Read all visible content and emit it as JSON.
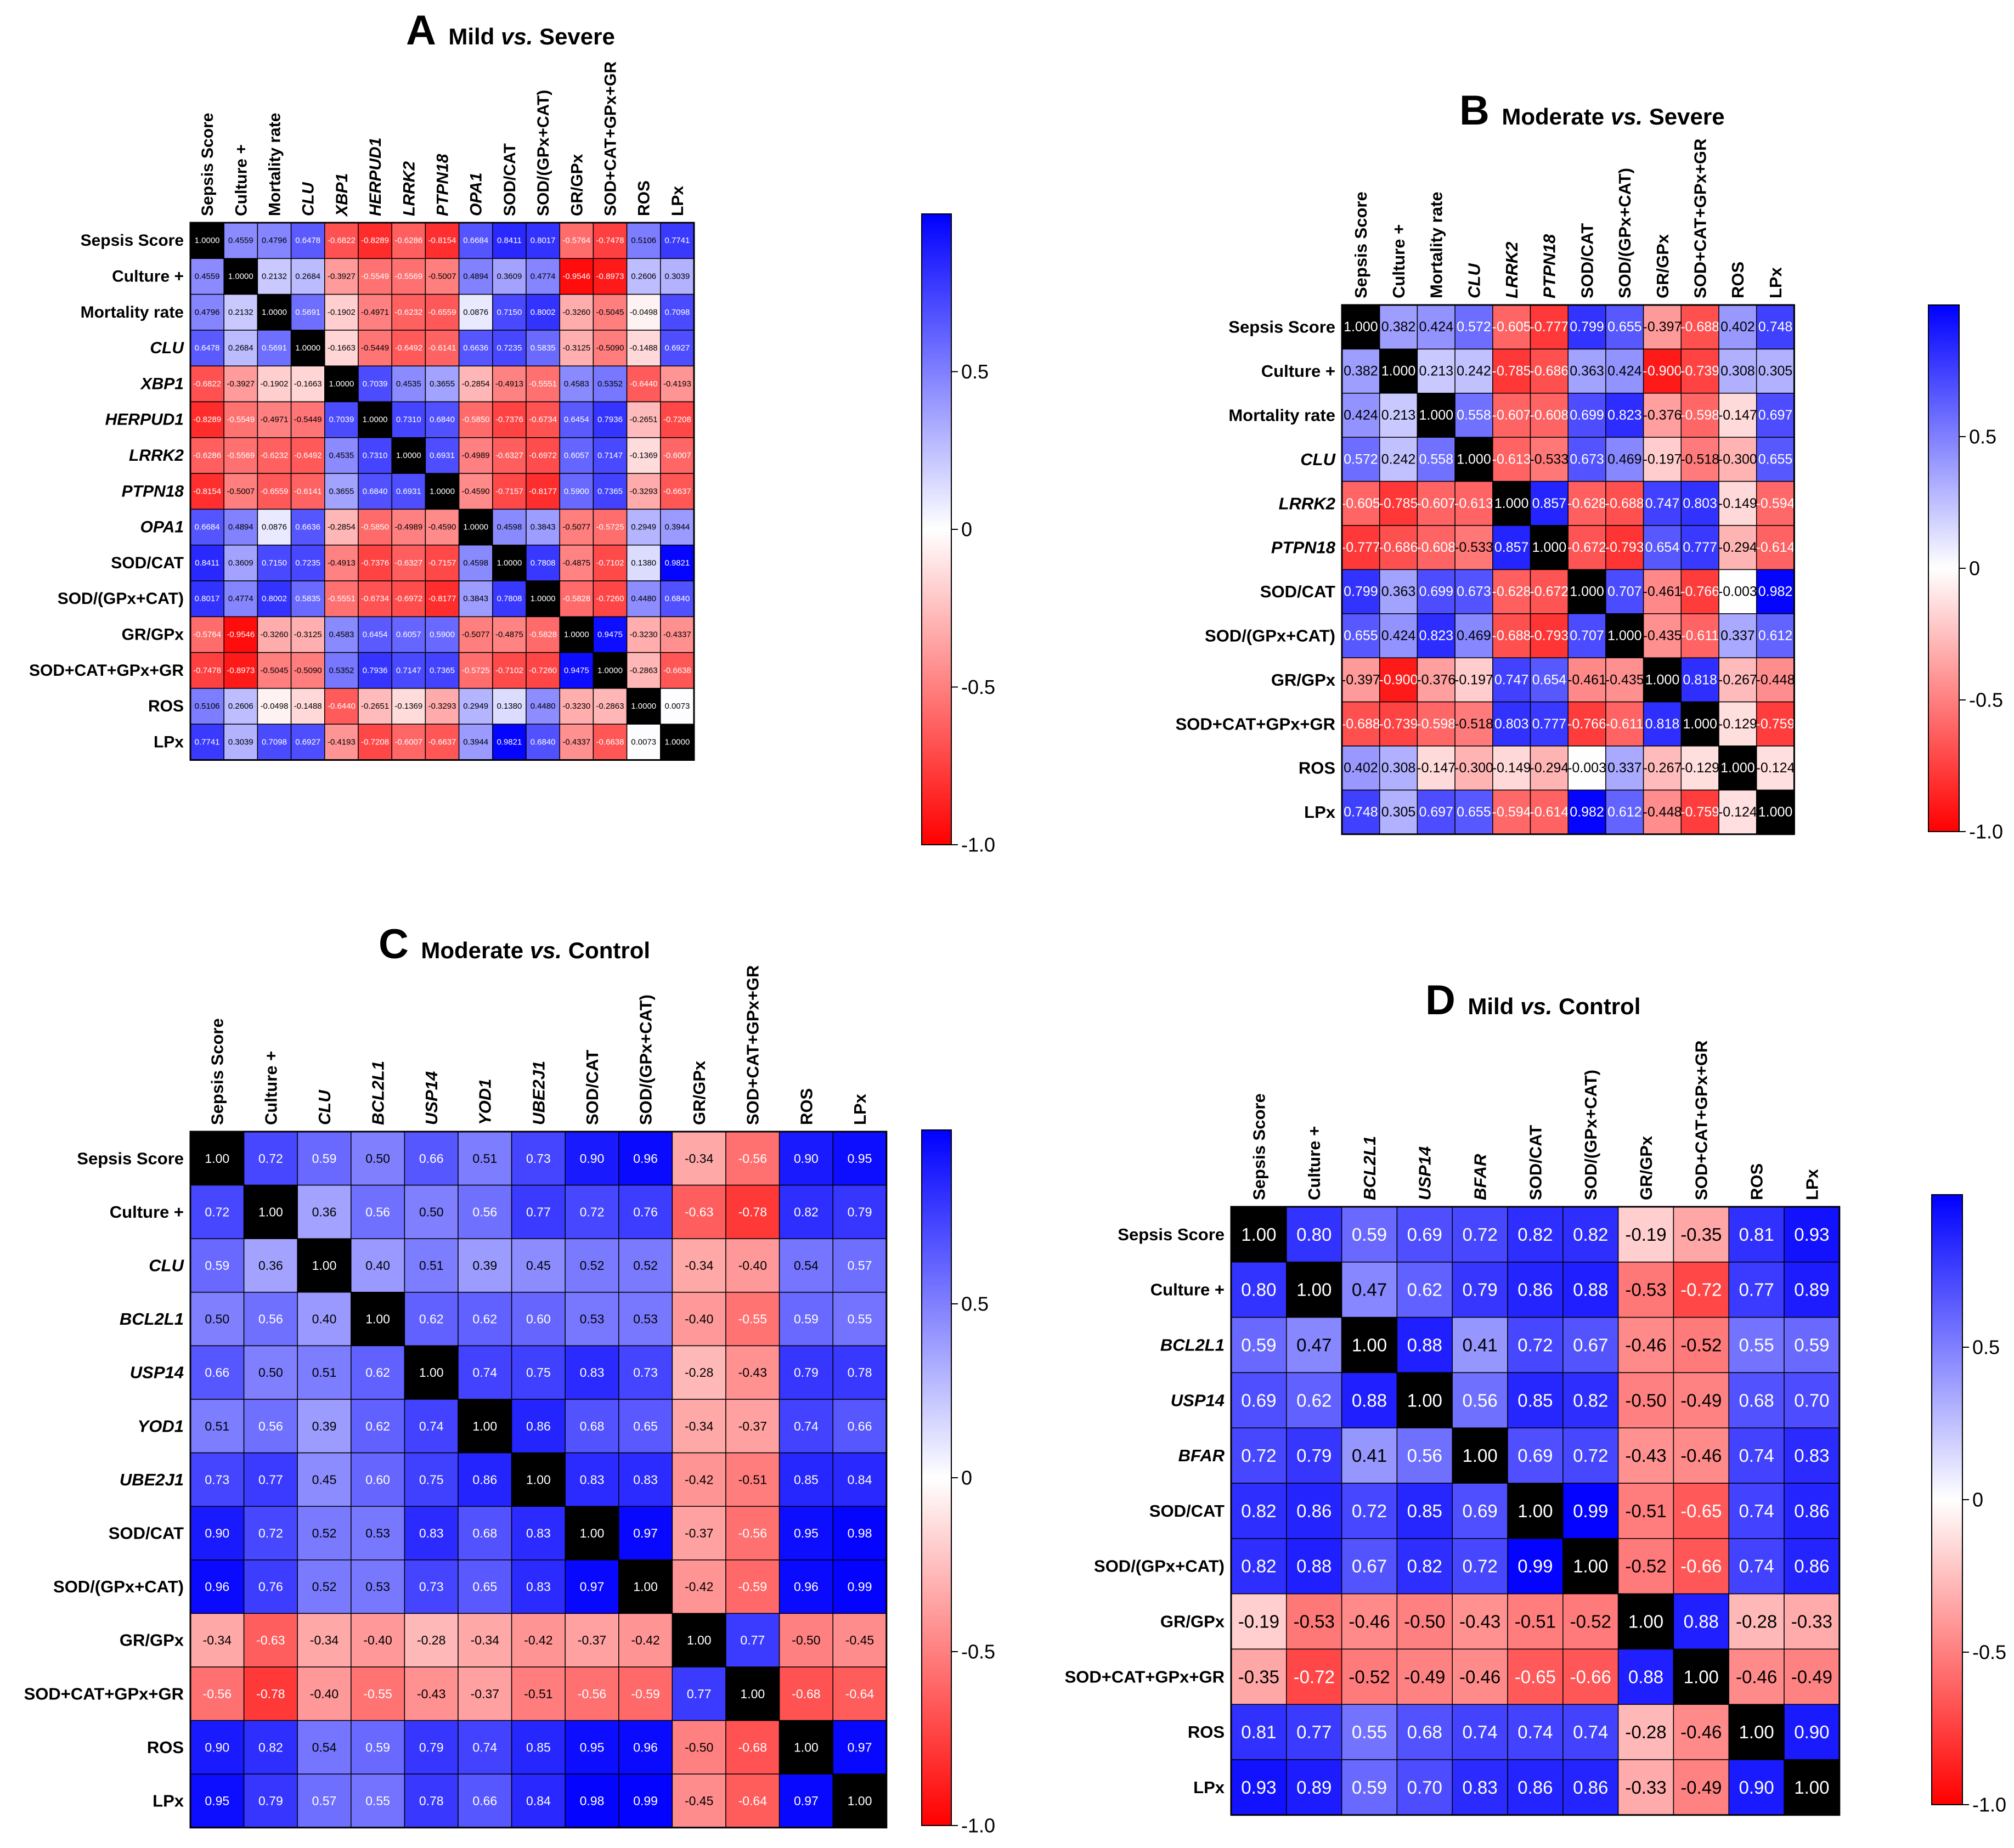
{
  "colors": {
    "negative": "#ff0000",
    "zero": "#ffffff",
    "positive": "#0000ff",
    "diagonal": "#000000",
    "grid": "#000000"
  },
  "chart_data": [
    {
      "type": "heatmap",
      "letter": "A",
      "title_pre": "Mild ",
      "title_vs": "vs.",
      "title_post": " Severe",
      "labels": [
        "Sepsis Score",
        "Culture +",
        "Mortality rate",
        "CLU",
        "XBP1",
        "HERPUD1",
        "LRRK2",
        "PTPN18",
        "OPA1",
        "SOD/CAT",
        "SOD/(GPx+CAT)",
        "GR/GPx",
        "SOD+CAT+GPx+GR",
        "ROS",
        "LPx"
      ],
      "italic": [
        false,
        false,
        false,
        true,
        true,
        true,
        true,
        true,
        true,
        false,
        false,
        false,
        false,
        false,
        false
      ],
      "values": [
        [
          "1.0000",
          "0.4559",
          "0.4796",
          "0.6478",
          "-0.6822",
          "-0.8289",
          "-0.6286",
          "-0.8154",
          "0.6684",
          "0.8411",
          "0.8017",
          "-0.5764",
          "-0.7478",
          "0.5106",
          "0.7741"
        ],
        [
          "0.4559",
          "1.0000",
          "0.2132",
          "0.2684",
          "-0.3927",
          "-0.5549",
          "-0.5569",
          "-0.5007",
          "0.4894",
          "0.3609",
          "0.4774",
          "-0.9546",
          "-0.8973",
          "0.2606",
          "0.3039"
        ],
        [
          "0.4796",
          "0.2132",
          "1.0000",
          "0.5691",
          "-0.1902",
          "-0.4971",
          "-0.6232",
          "-0.6559",
          "0.0876",
          "0.7150",
          "0.8002",
          "-0.3260",
          "-0.5045",
          "-0.0498",
          "0.7098"
        ],
        [
          "0.6478",
          "0.2684",
          "0.5691",
          "1.0000",
          "-0.1663",
          "-0.5449",
          "-0.6492",
          "-0.6141",
          "0.6636",
          "0.7235",
          "0.5835",
          "-0.3125",
          "-0.5090",
          "-0.1488",
          "0.6927"
        ],
        [
          "-0.6822",
          "-0.3927",
          "-0.1902",
          "-0.1663",
          "1.0000",
          "0.7039",
          "0.4535",
          "0.3655",
          "-0.2854",
          "-0.4913",
          "-0.5551",
          "0.4583",
          "0.5352",
          "-0.6440",
          "-0.4193"
        ],
        [
          "-0.8289",
          "-0.5549",
          "-0.4971",
          "-0.5449",
          "0.7039",
          "1.0000",
          "0.7310",
          "0.6840",
          "-0.5850",
          "-0.7376",
          "-0.6734",
          "0.6454",
          "0.7936",
          "-0.2651",
          "-0.7208"
        ],
        [
          "-0.6286",
          "-0.5569",
          "-0.6232",
          "-0.6492",
          "0.4535",
          "0.7310",
          "1.0000",
          "0.6931",
          "-0.4989",
          "-0.6327",
          "-0.6972",
          "0.6057",
          "0.7147",
          "-0.1369",
          "-0.6007"
        ],
        [
          "-0.8154",
          "-0.5007",
          "-0.6559",
          "-0.6141",
          "0.3655",
          "0.6840",
          "0.6931",
          "1.0000",
          "-0.4590",
          "-0.7157",
          "-0.8177",
          "0.5900",
          "0.7365",
          "-0.3293",
          "-0.6637"
        ],
        [
          "0.6684",
          "0.4894",
          "0.0876",
          "0.6636",
          "-0.2854",
          "-0.5850",
          "-0.4989",
          "-0.4590",
          "1.0000",
          "0.4598",
          "0.3843",
          "-0.5077",
          "-0.5725",
          "0.2949",
          "0.3944"
        ],
        [
          "0.8411",
          "0.3609",
          "0.7150",
          "0.7235",
          "-0.4913",
          "-0.7376",
          "-0.6327",
          "-0.7157",
          "0.4598",
          "1.0000",
          "0.7808",
          "-0.4875",
          "-0.7102",
          "0.1380",
          "0.9821"
        ],
        [
          "0.8017",
          "0.4774",
          "0.8002",
          "0.5835",
          "-0.5551",
          "-0.6734",
          "-0.6972",
          "-0.8177",
          "0.3843",
          "0.7808",
          "1.0000",
          "-0.5828",
          "-0.7260",
          "0.4480",
          "0.6840"
        ],
        [
          "-0.5764",
          "-0.9546",
          "-0.3260",
          "-0.3125",
          "0.4583",
          "0.6454",
          "0.6057",
          "0.5900",
          "-0.5077",
          "-0.4875",
          "-0.5828",
          "1.0000",
          "0.9475",
          "-0.3230",
          "-0.4337"
        ],
        [
          "-0.7478",
          "-0.8973",
          "-0.5045",
          "-0.5090",
          "0.5352",
          "0.7936",
          "0.7147",
          "0.7365",
          "-0.5725",
          "-0.7102",
          "-0.7260",
          "0.9475",
          "1.0000",
          "-0.2863",
          "-0.6638"
        ],
        [
          "0.5106",
          "0.2606",
          "-0.0498",
          "-0.1488",
          "-0.6440",
          "-0.2651",
          "-0.1369",
          "-0.3293",
          "0.2949",
          "0.1380",
          "0.4480",
          "-0.3230",
          "-0.2863",
          "1.0000",
          "0.0073"
        ],
        [
          "0.7741",
          "0.3039",
          "0.7098",
          "0.6927",
          "-0.4193",
          "-0.7208",
          "-0.6007",
          "-0.6637",
          "0.3944",
          "0.9821",
          "0.6840",
          "-0.4337",
          "-0.6638",
          "0.0073",
          "1.0000"
        ]
      ],
      "colorbar": {
        "ticks": [
          "0.5",
          "0",
          "-0.5",
          "-1.0"
        ],
        "tick_values": [
          0.5,
          0,
          -0.5,
          -1.0
        ],
        "range": [
          -1,
          1
        ]
      }
    },
    {
      "type": "heatmap",
      "letter": "B",
      "title_pre": "Moderate ",
      "title_vs": "vs.",
      "title_post": " Severe",
      "labels": [
        "Sepsis Score",
        "Culture +",
        "Mortality rate",
        "CLU",
        "LRRK2",
        "PTPN18",
        "SOD/CAT",
        "SOD/(GPx+CAT)",
        "GR/GPx",
        "SOD+CAT+GPx+GR",
        "ROS",
        "LPx"
      ],
      "italic": [
        false,
        false,
        false,
        true,
        true,
        true,
        false,
        false,
        false,
        false,
        false,
        false
      ],
      "values": [
        [
          "1.000",
          "0.382",
          "0.424",
          "0.572",
          "-0.605",
          "-0.777",
          "0.799",
          "0.655",
          "-0.397",
          "-0.688",
          "0.402",
          "0.748"
        ],
        [
          "0.382",
          "1.000",
          "0.213",
          "0.242",
          "-0.785",
          "-0.686",
          "0.363",
          "0.424",
          "-0.900",
          "-0.739",
          "0.308",
          "0.305"
        ],
        [
          "0.424",
          "0.213",
          "1.000",
          "0.558",
          "-0.607",
          "-0.608",
          "0.699",
          "0.823",
          "-0.376",
          "-0.598",
          "-0.147",
          "0.697"
        ],
        [
          "0.572",
          "0.242",
          "0.558",
          "1.000",
          "-0.613",
          "-0.533",
          "0.673",
          "0.469",
          "-0.197",
          "-0.518",
          "-0.300",
          "0.655"
        ],
        [
          "-0.605",
          "-0.785",
          "-0.607",
          "-0.613",
          "1.000",
          "0.857",
          "-0.628",
          "-0.688",
          "0.747",
          "0.803",
          "-0.149",
          "-0.594"
        ],
        [
          "-0.777",
          "-0.686",
          "-0.608",
          "-0.533",
          "0.857",
          "1.000",
          "-0.672",
          "-0.793",
          "0.654",
          "0.777",
          "-0.294",
          "-0.614"
        ],
        [
          "0.799",
          "0.363",
          "0.699",
          "0.673",
          "-0.628",
          "-0.672",
          "1.000",
          "0.707",
          "-0.461",
          "-0.766",
          "-0.003",
          "0.982"
        ],
        [
          "0.655",
          "0.424",
          "0.823",
          "0.469",
          "-0.688",
          "-0.793",
          "0.707",
          "1.000",
          "-0.435",
          "-0.611",
          "0.337",
          "0.612"
        ],
        [
          "-0.397",
          "-0.900",
          "-0.376",
          "-0.197",
          "0.747",
          "0.654",
          "-0.461",
          "-0.435",
          "1.000",
          "0.818",
          "-0.267",
          "-0.448"
        ],
        [
          "-0.688",
          "-0.739",
          "-0.598",
          "-0.518",
          "0.803",
          "0.777",
          "-0.766",
          "-0.611",
          "0.818",
          "1.000",
          "-0.129",
          "-0.759"
        ],
        [
          "0.402",
          "0.308",
          "-0.147",
          "-0.300",
          "-0.149",
          "-0.294",
          "-0.003",
          "0.337",
          "-0.267",
          "-0.129",
          "1.000",
          "-0.124"
        ],
        [
          "0.748",
          "0.305",
          "0.697",
          "0.655",
          "-0.594",
          "-0.614",
          "0.982",
          "0.612",
          "-0.448",
          "-0.759",
          "-0.124",
          "1.000"
        ]
      ],
      "colorbar": {
        "ticks": [
          "0.5",
          "0",
          "-0.5",
          "-1.0"
        ],
        "tick_values": [
          0.5,
          0,
          -0.5,
          -1.0
        ],
        "range": [
          -1,
          1
        ]
      }
    },
    {
      "type": "heatmap",
      "letter": "C",
      "title_pre": "Moderate ",
      "title_vs": "vs.",
      "title_post": " Control",
      "labels": [
        "Sepsis Score",
        "Culture +",
        "CLU",
        "BCL2L1",
        "USP14",
        "YOD1",
        "UBE2J1",
        "SOD/CAT",
        "SOD/(GPx+CAT)",
        "GR/GPx",
        "SOD+CAT+GPx+GR",
        "ROS",
        "LPx"
      ],
      "italic": [
        false,
        false,
        true,
        true,
        true,
        true,
        true,
        false,
        false,
        false,
        false,
        false,
        false
      ],
      "values": [
        [
          "1.00",
          "0.72",
          "0.59",
          "0.50",
          "0.66",
          "0.51",
          "0.73",
          "0.90",
          "0.96",
          "-0.34",
          "-0.56",
          "0.90",
          "0.95"
        ],
        [
          "0.72",
          "1.00",
          "0.36",
          "0.56",
          "0.50",
          "0.56",
          "0.77",
          "0.72",
          "0.76",
          "-0.63",
          "-0.78",
          "0.82",
          "0.79"
        ],
        [
          "0.59",
          "0.36",
          "1.00",
          "0.40",
          "0.51",
          "0.39",
          "0.45",
          "0.52",
          "0.52",
          "-0.34",
          "-0.40",
          "0.54",
          "0.57"
        ],
        [
          "0.50",
          "0.56",
          "0.40",
          "1.00",
          "0.62",
          "0.62",
          "0.60",
          "0.53",
          "0.53",
          "-0.40",
          "-0.55",
          "0.59",
          "0.55"
        ],
        [
          "0.66",
          "0.50",
          "0.51",
          "0.62",
          "1.00",
          "0.74",
          "0.75",
          "0.83",
          "0.73",
          "-0.28",
          "-0.43",
          "0.79",
          "0.78"
        ],
        [
          "0.51",
          "0.56",
          "0.39",
          "0.62",
          "0.74",
          "1.00",
          "0.86",
          "0.68",
          "0.65",
          "-0.34",
          "-0.37",
          "0.74",
          "0.66"
        ],
        [
          "0.73",
          "0.77",
          "0.45",
          "0.60",
          "0.75",
          "0.86",
          "1.00",
          "0.83",
          "0.83",
          "-0.42",
          "-0.51",
          "0.85",
          "0.84"
        ],
        [
          "0.90",
          "0.72",
          "0.52",
          "0.53",
          "0.83",
          "0.68",
          "0.83",
          "1.00",
          "0.97",
          "-0.37",
          "-0.56",
          "0.95",
          "0.98"
        ],
        [
          "0.96",
          "0.76",
          "0.52",
          "0.53",
          "0.73",
          "0.65",
          "0.83",
          "0.97",
          "1.00",
          "-0.42",
          "-0.59",
          "0.96",
          "0.99"
        ],
        [
          "-0.34",
          "-0.63",
          "-0.34",
          "-0.40",
          "-0.28",
          "-0.34",
          "-0.42",
          "-0.37",
          "-0.42",
          "1.00",
          "0.77",
          "-0.50",
          "-0.45"
        ],
        [
          "-0.56",
          "-0.78",
          "-0.40",
          "-0.55",
          "-0.43",
          "-0.37",
          "-0.51",
          "-0.56",
          "-0.59",
          "0.77",
          "1.00",
          "-0.68",
          "-0.64"
        ],
        [
          "0.90",
          "0.82",
          "0.54",
          "0.59",
          "0.79",
          "0.74",
          "0.85",
          "0.95",
          "0.96",
          "-0.50",
          "-0.68",
          "1.00",
          "0.97"
        ],
        [
          "0.95",
          "0.79",
          "0.57",
          "0.55",
          "0.78",
          "0.66",
          "0.84",
          "0.98",
          "0.99",
          "-0.45",
          "-0.64",
          "0.97",
          "1.00"
        ]
      ],
      "colorbar": {
        "ticks": [
          "0.5",
          "0",
          "-0.5",
          "-1.0"
        ],
        "tick_values": [
          0.5,
          0,
          -0.5,
          -1.0
        ],
        "range": [
          -1,
          1
        ]
      }
    },
    {
      "type": "heatmap",
      "letter": "D",
      "title_pre": "Mild ",
      "title_vs": "vs.",
      "title_post": " Control",
      "labels": [
        "Sepsis Score",
        "Culture +",
        "BCL2L1",
        "USP14",
        "BFAR",
        "SOD/CAT",
        "SOD/(GPx+CAT)",
        "GR/GPx",
        "SOD+CAT+GPx+GR",
        "ROS",
        "LPx"
      ],
      "italic": [
        false,
        false,
        true,
        true,
        true,
        false,
        false,
        false,
        false,
        false,
        false
      ],
      "values": [
        [
          "1.00",
          "0.80",
          "0.59",
          "0.69",
          "0.72",
          "0.82",
          "0.82",
          "-0.19",
          "-0.35",
          "0.81",
          "0.93"
        ],
        [
          "0.80",
          "1.00",
          "0.47",
          "0.62",
          "0.79",
          "0.86",
          "0.88",
          "-0.53",
          "-0.72",
          "0.77",
          "0.89"
        ],
        [
          "0.59",
          "0.47",
          "1.00",
          "0.88",
          "0.41",
          "0.72",
          "0.67",
          "-0.46",
          "-0.52",
          "0.55",
          "0.59"
        ],
        [
          "0.69",
          "0.62",
          "0.88",
          "1.00",
          "0.56",
          "0.85",
          "0.82",
          "-0.50",
          "-0.49",
          "0.68",
          "0.70"
        ],
        [
          "0.72",
          "0.79",
          "0.41",
          "0.56",
          "1.00",
          "0.69",
          "0.72",
          "-0.43",
          "-0.46",
          "0.74",
          "0.83"
        ],
        [
          "0.82",
          "0.86",
          "0.72",
          "0.85",
          "0.69",
          "1.00",
          "0.99",
          "-0.51",
          "-0.65",
          "0.74",
          "0.86"
        ],
        [
          "0.82",
          "0.88",
          "0.67",
          "0.82",
          "0.72",
          "0.99",
          "1.00",
          "-0.52",
          "-0.66",
          "0.74",
          "0.86"
        ],
        [
          "-0.19",
          "-0.53",
          "-0.46",
          "-0.50",
          "-0.43",
          "-0.51",
          "-0.52",
          "1.00",
          "0.88",
          "-0.28",
          "-0.33"
        ],
        [
          "-0.35",
          "-0.72",
          "-0.52",
          "-0.49",
          "-0.46",
          "-0.65",
          "-0.66",
          "0.88",
          "1.00",
          "-0.46",
          "-0.49"
        ],
        [
          "0.81",
          "0.77",
          "0.55",
          "0.68",
          "0.74",
          "0.74",
          "0.74",
          "-0.28",
          "-0.46",
          "1.00",
          "0.90"
        ],
        [
          "0.93",
          "0.89",
          "0.59",
          "0.70",
          "0.83",
          "0.86",
          "0.86",
          "-0.33",
          "-0.49",
          "0.90",
          "1.00"
        ]
      ],
      "colorbar": {
        "ticks": [
          "0.5",
          "0",
          "-0.5",
          "-1.0"
        ],
        "tick_values": [
          0.5,
          0,
          -0.5,
          -1.0
        ],
        "range": [
          -1,
          1
        ]
      }
    }
  ]
}
